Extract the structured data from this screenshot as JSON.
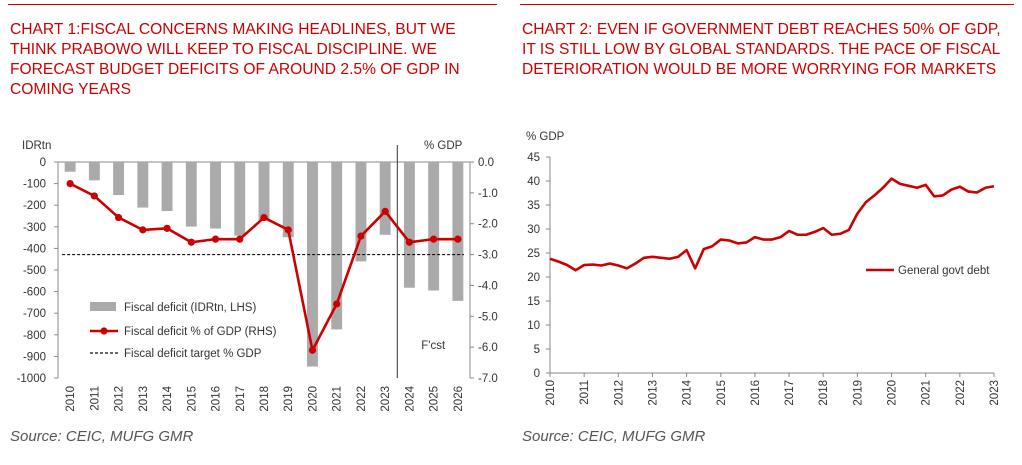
{
  "colors": {
    "accent": "#cc0000",
    "bar": "#aaaaaa",
    "text": "#333333",
    "source": "#555555"
  },
  "chart1": {
    "title": "CHART 1:FISCAL CONCERNS MAKING HEADLINES, BUT WE THINK PRABOWO WILL KEEP TO FISCAL DISCIPLINE. WE FORECAST BUDGET DEFICITS OF AROUND 2.5% OF GDP IN COMING YEARS",
    "source": "Source: CEIC, MUFG GMR",
    "forecast_label": "F'cst"
  },
  "chart2": {
    "title": "CHART 2: EVEN IF GOVERNMENT DEBT REACHES 50% OF GDP, IT IS STILL LOW BY GLOBAL STANDARDS. THE PACE OF FISCAL DETERIORATION WOULD BE MORE WORRYING FOR MARKETS",
    "source": "Source: CEIC, MUFG GMR"
  },
  "chart_data": [
    {
      "type": "bar",
      "categories": [
        "2010",
        "2011",
        "2012",
        "2013",
        "2014",
        "2015",
        "2016",
        "2017",
        "2018",
        "2019",
        "2020",
        "2021",
        "2022",
        "2023",
        "2024",
        "2025",
        "2026"
      ],
      "y_left_label": "IDRtn",
      "y_right_label": "% GDP",
      "ylim_left": [
        -1000,
        0
      ],
      "ylim_right": [
        -7.0,
        0.0
      ],
      "left_ticks": [
        "0",
        "-100",
        "-200",
        "-300",
        "-400",
        "-500",
        "-600",
        "-700",
        "-800",
        "-900",
        "-1000"
      ],
      "right_ticks": [
        "0.0",
        "-1.0",
        "-2.0",
        "-3.0",
        "-4.0",
        "-5.0",
        "-6.0",
        "-7.0"
      ],
      "series": [
        {
          "name": "Fiscal deficit (IDRtn, LHS)",
          "type": "bar",
          "axis": "left",
          "values": [
            -45,
            -85,
            -153,
            -211,
            -227,
            -299,
            -308,
            -341,
            -269,
            -348,
            -947,
            -775,
            -460,
            -337,
            -582,
            -595,
            -643
          ]
        },
        {
          "name": "Fiscal deficit % of GDP (RHS)",
          "type": "line",
          "axis": "right",
          "values": [
            -0.7,
            -1.1,
            -1.8,
            -2.2,
            -2.15,
            -2.6,
            -2.5,
            -2.5,
            -1.8,
            -2.2,
            -6.1,
            -4.6,
            -2.4,
            -1.6,
            -2.6,
            -2.5,
            -2.5
          ]
        },
        {
          "name": "Fiscal deficit target % GDP",
          "type": "line",
          "axis": "right",
          "style": "dashed",
          "values": [
            -3.0,
            -3.0,
            -3.0,
            -3.0,
            -3.0,
            -3.0,
            -3.0,
            -3.0,
            -3.0,
            -3.0,
            -3.0,
            -3.0,
            -3.0,
            -3.0,
            -3.0,
            -3.0,
            -3.0
          ]
        }
      ],
      "forecast_start": "2024",
      "legend_position": "bottom-left",
      "grid": false
    },
    {
      "type": "line",
      "ylabel": "% GDP",
      "ylim": [
        0,
        45
      ],
      "y_ticks": [
        "0",
        "5",
        "10",
        "15",
        "20",
        "25",
        "30",
        "35",
        "40",
        "45"
      ],
      "x_ticks": [
        "2010",
        "2011",
        "2012",
        "2013",
        "2014",
        "2015",
        "2016",
        "2017",
        "2018",
        "2019",
        "2020",
        "2021",
        "2022",
        "2023"
      ],
      "series": [
        {
          "name": "General govt debt",
          "x": [
            2010.0,
            2010.25,
            2010.5,
            2010.75,
            2011.0,
            2011.25,
            2011.5,
            2011.75,
            2012.0,
            2012.25,
            2012.5,
            2012.75,
            2013.0,
            2013.25,
            2013.5,
            2013.75,
            2014.0,
            2014.25,
            2014.5,
            2014.75,
            2015.0,
            2015.25,
            2015.5,
            2015.75,
            2016.0,
            2016.25,
            2016.5,
            2016.75,
            2017.0,
            2017.25,
            2017.5,
            2017.75,
            2018.0,
            2018.25,
            2018.5,
            2018.75,
            2019.0,
            2019.25,
            2019.5,
            2019.75,
            2020.0,
            2020.25,
            2020.5,
            2020.75,
            2021.0,
            2021.25,
            2021.5,
            2021.75,
            2022.0,
            2022.25,
            2022.5,
            2022.75,
            2023.0
          ],
          "y": [
            23.8,
            23.2,
            22.5,
            21.4,
            22.5,
            22.6,
            22.4,
            22.8,
            22.4,
            21.8,
            22.8,
            24.0,
            24.2,
            24.0,
            23.8,
            24.2,
            25.6,
            21.8,
            25.8,
            26.4,
            27.8,
            27.6,
            27.0,
            27.2,
            28.3,
            27.8,
            27.8,
            28.3,
            29.6,
            28.8,
            28.8,
            29.4,
            30.2,
            28.8,
            29.0,
            29.8,
            33.2,
            35.6,
            37.0,
            38.6,
            40.5,
            39.4,
            39.0,
            38.6,
            39.2,
            36.8,
            37.0,
            38.2,
            38.8,
            37.8,
            37.6,
            38.6,
            38.9
          ]
        }
      ],
      "legend_position": "right",
      "grid": false
    }
  ]
}
